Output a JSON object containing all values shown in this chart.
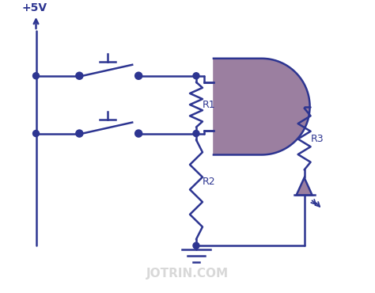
{
  "bg_color": "#ffffff",
  "line_color": "#2d3591",
  "component_fill": "#9b7fa0",
  "text_color": "#2d3591",
  "watermark_color": "#c8c8c8",
  "title": "+5V",
  "label_R1": "R1",
  "label_R2": "R2",
  "label_R3": "R3",
  "watermark": "JOTRIN.COM"
}
